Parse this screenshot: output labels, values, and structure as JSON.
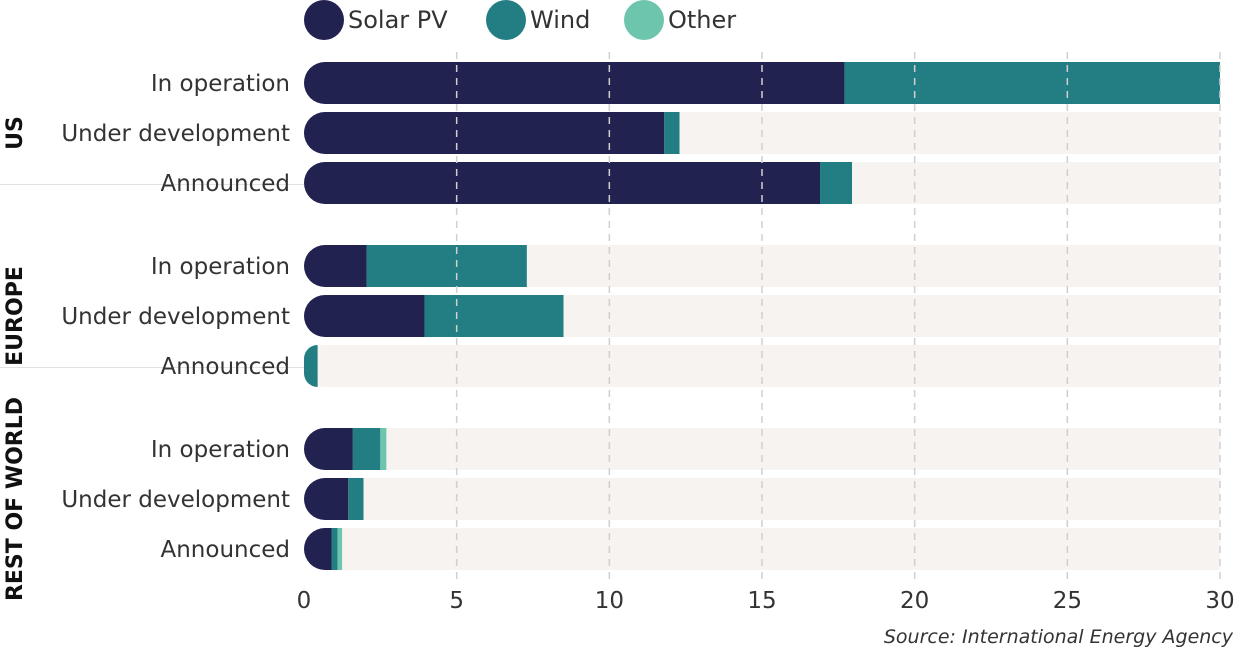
{
  "chart_data": {
    "type": "bar",
    "orientation": "horizontal",
    "stacked": true,
    "title": "",
    "xlabel": "",
    "ylabel": "",
    "xlim": [
      0,
      30
    ],
    "xticks": [
      0,
      5,
      10,
      15,
      20,
      25,
      30
    ],
    "grid": true,
    "legend_position": "top",
    "series": [
      {
        "name": "Solar PV",
        "color": "#21224f"
      },
      {
        "name": "Wind",
        "color": "#227e82"
      },
      {
        "name": "Other",
        "color": "#6ec5ae"
      }
    ],
    "groups": [
      {
        "name": "US",
        "categories": [
          {
            "label": "In operation",
            "values": [
              17.7,
              12.3,
              0
            ]
          },
          {
            "label": "Under development",
            "values": [
              11.8,
              0.5,
              0
            ]
          },
          {
            "label": "Announced",
            "values": [
              16.9,
              1.05,
              0
            ]
          }
        ]
      },
      {
        "name": "EUROPE",
        "categories": [
          {
            "label": "In operation",
            "values": [
              2.05,
              5.25,
              0
            ]
          },
          {
            "label": "Under development",
            "values": [
              3.95,
              4.55,
              0
            ]
          },
          {
            "label": "Announced",
            "values": [
              0,
              0.45,
              0
            ]
          }
        ]
      },
      {
        "name": "REST OF WORLD",
        "categories": [
          {
            "label": "In operation",
            "values": [
              1.6,
              0.9,
              0.2
            ]
          },
          {
            "label": "Under development",
            "values": [
              1.45,
              0.5,
              0
            ]
          },
          {
            "label": "Announced",
            "values": [
              0.9,
              0.2,
              0.15
            ]
          }
        ]
      }
    ],
    "source": "Source: International Energy Agency"
  },
  "colors": {
    "track": "#f6f3f0",
    "grid": "#d0d0d0",
    "divider": "#e2e2e2"
  }
}
